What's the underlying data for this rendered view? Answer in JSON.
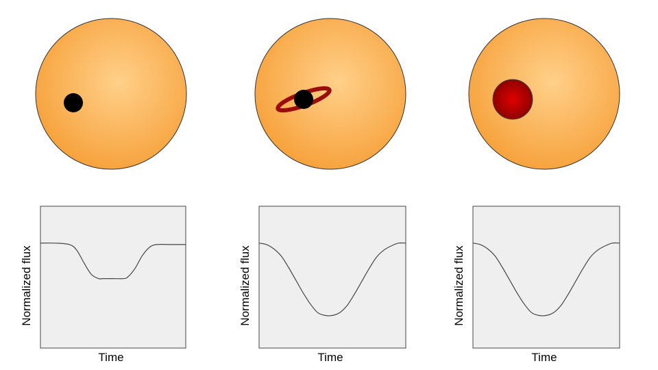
{
  "colors": {
    "star_center": "#ffd08a",
    "star_edge": "#f7a23c",
    "planet": "#000000",
    "ring": "#9b0d0d",
    "spot_center": "#e00000",
    "spot_edge": "#8f0000",
    "plot_background": "#efefef",
    "curve": "#444444"
  },
  "panels": [
    {
      "scene": "planet-transit",
      "icons": [
        "star-disk",
        "planet-disk"
      ],
      "xlabel": "Time",
      "ylabel": "Normalized flux",
      "chart_data": {
        "type": "line",
        "xlabel": "Time",
        "ylabel": "Normalized flux",
        "xlim": [
          0,
          1
        ],
        "ylim": [
          0,
          1
        ],
        "grid": false,
        "x": [
          0.0,
          0.1,
          0.2,
          0.25,
          0.3,
          0.35,
          0.4,
          0.43,
          0.5,
          0.57,
          0.6,
          0.65,
          0.7,
          0.75,
          0.8,
          0.9,
          1.0
        ],
        "y": [
          0.74,
          0.74,
          0.73,
          0.69,
          0.6,
          0.52,
          0.49,
          0.49,
          0.49,
          0.49,
          0.5,
          0.56,
          0.65,
          0.71,
          0.73,
          0.73,
          0.73
        ]
      }
    },
    {
      "scene": "ringed-planet-transit",
      "icons": [
        "star-disk",
        "ring-ellipse",
        "planet-disk"
      ],
      "xlabel": "Time",
      "ylabel": "Normalized flux",
      "chart_data": {
        "type": "line",
        "xlabel": "Time",
        "ylabel": "Normalized flux",
        "xlim": [
          0,
          1
        ],
        "ylim": [
          0,
          1
        ],
        "grid": false,
        "x": [
          0.0,
          0.05,
          0.1,
          0.15,
          0.2,
          0.25,
          0.3,
          0.35,
          0.4,
          0.45,
          0.5,
          0.55,
          0.6,
          0.65,
          0.7,
          0.75,
          0.8,
          0.85,
          0.9,
          0.95,
          1.0
        ],
        "y": [
          0.74,
          0.73,
          0.7,
          0.65,
          0.57,
          0.48,
          0.39,
          0.31,
          0.25,
          0.23,
          0.23,
          0.25,
          0.3,
          0.38,
          0.47,
          0.56,
          0.64,
          0.69,
          0.72,
          0.74,
          0.74
        ]
      }
    },
    {
      "scene": "starspot",
      "icons": [
        "star-disk",
        "spot-disk"
      ],
      "xlabel": "Time",
      "ylabel": "Normalized flux",
      "chart_data": {
        "type": "line",
        "xlabel": "Time",
        "ylabel": "Normalized flux",
        "xlim": [
          0,
          1
        ],
        "ylim": [
          0,
          1
        ],
        "grid": false,
        "x": [
          0.0,
          0.05,
          0.1,
          0.15,
          0.2,
          0.25,
          0.3,
          0.35,
          0.4,
          0.45,
          0.5,
          0.55,
          0.6,
          0.65,
          0.7,
          0.75,
          0.8,
          0.85,
          0.9,
          0.95,
          1.0
        ],
        "y": [
          0.74,
          0.73,
          0.7,
          0.65,
          0.57,
          0.48,
          0.39,
          0.31,
          0.25,
          0.23,
          0.23,
          0.25,
          0.3,
          0.38,
          0.47,
          0.56,
          0.64,
          0.69,
          0.72,
          0.74,
          0.74
        ]
      }
    }
  ]
}
